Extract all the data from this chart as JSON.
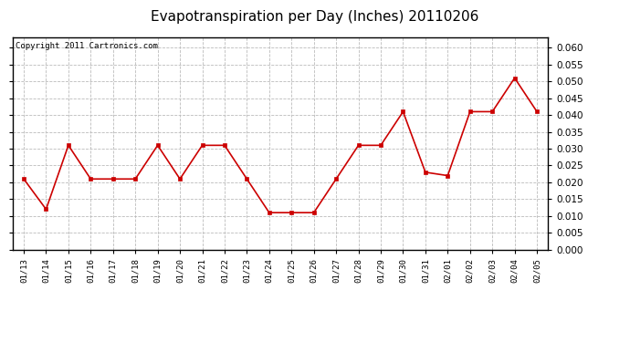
{
  "title": "Evapotranspiration per Day (Inches) 20110206",
  "copyright_text": "Copyright 2011 Cartronics.com",
  "x_labels": [
    "01/13",
    "01/14",
    "01/15",
    "01/16",
    "01/17",
    "01/18",
    "01/19",
    "01/20",
    "01/21",
    "01/22",
    "01/23",
    "01/24",
    "01/25",
    "01/26",
    "01/27",
    "01/28",
    "01/29",
    "01/30",
    "01/31",
    "02/01",
    "02/02",
    "02/03",
    "02/04",
    "02/05"
  ],
  "y_values": [
    0.021,
    0.012,
    0.031,
    0.021,
    0.021,
    0.021,
    0.031,
    0.021,
    0.031,
    0.031,
    0.021,
    0.011,
    0.011,
    0.011,
    0.021,
    0.031,
    0.031,
    0.041,
    0.023,
    0.022,
    0.041,
    0.041,
    0.051,
    0.041
  ],
  "line_color": "#cc0000",
  "marker": "s",
  "marker_size": 2.5,
  "line_width": 1.2,
  "ylim": [
    0.0,
    0.063
  ],
  "yticks": [
    0.0,
    0.005,
    0.01,
    0.015,
    0.02,
    0.025,
    0.03,
    0.035,
    0.04,
    0.045,
    0.05,
    0.055,
    0.06
  ],
  "background_color": "#ffffff",
  "grid_color": "#bbbbbb",
  "title_fontsize": 11,
  "copyright_fontsize": 6.5,
  "tick_fontsize": 7.5,
  "xtick_fontsize": 6.5
}
